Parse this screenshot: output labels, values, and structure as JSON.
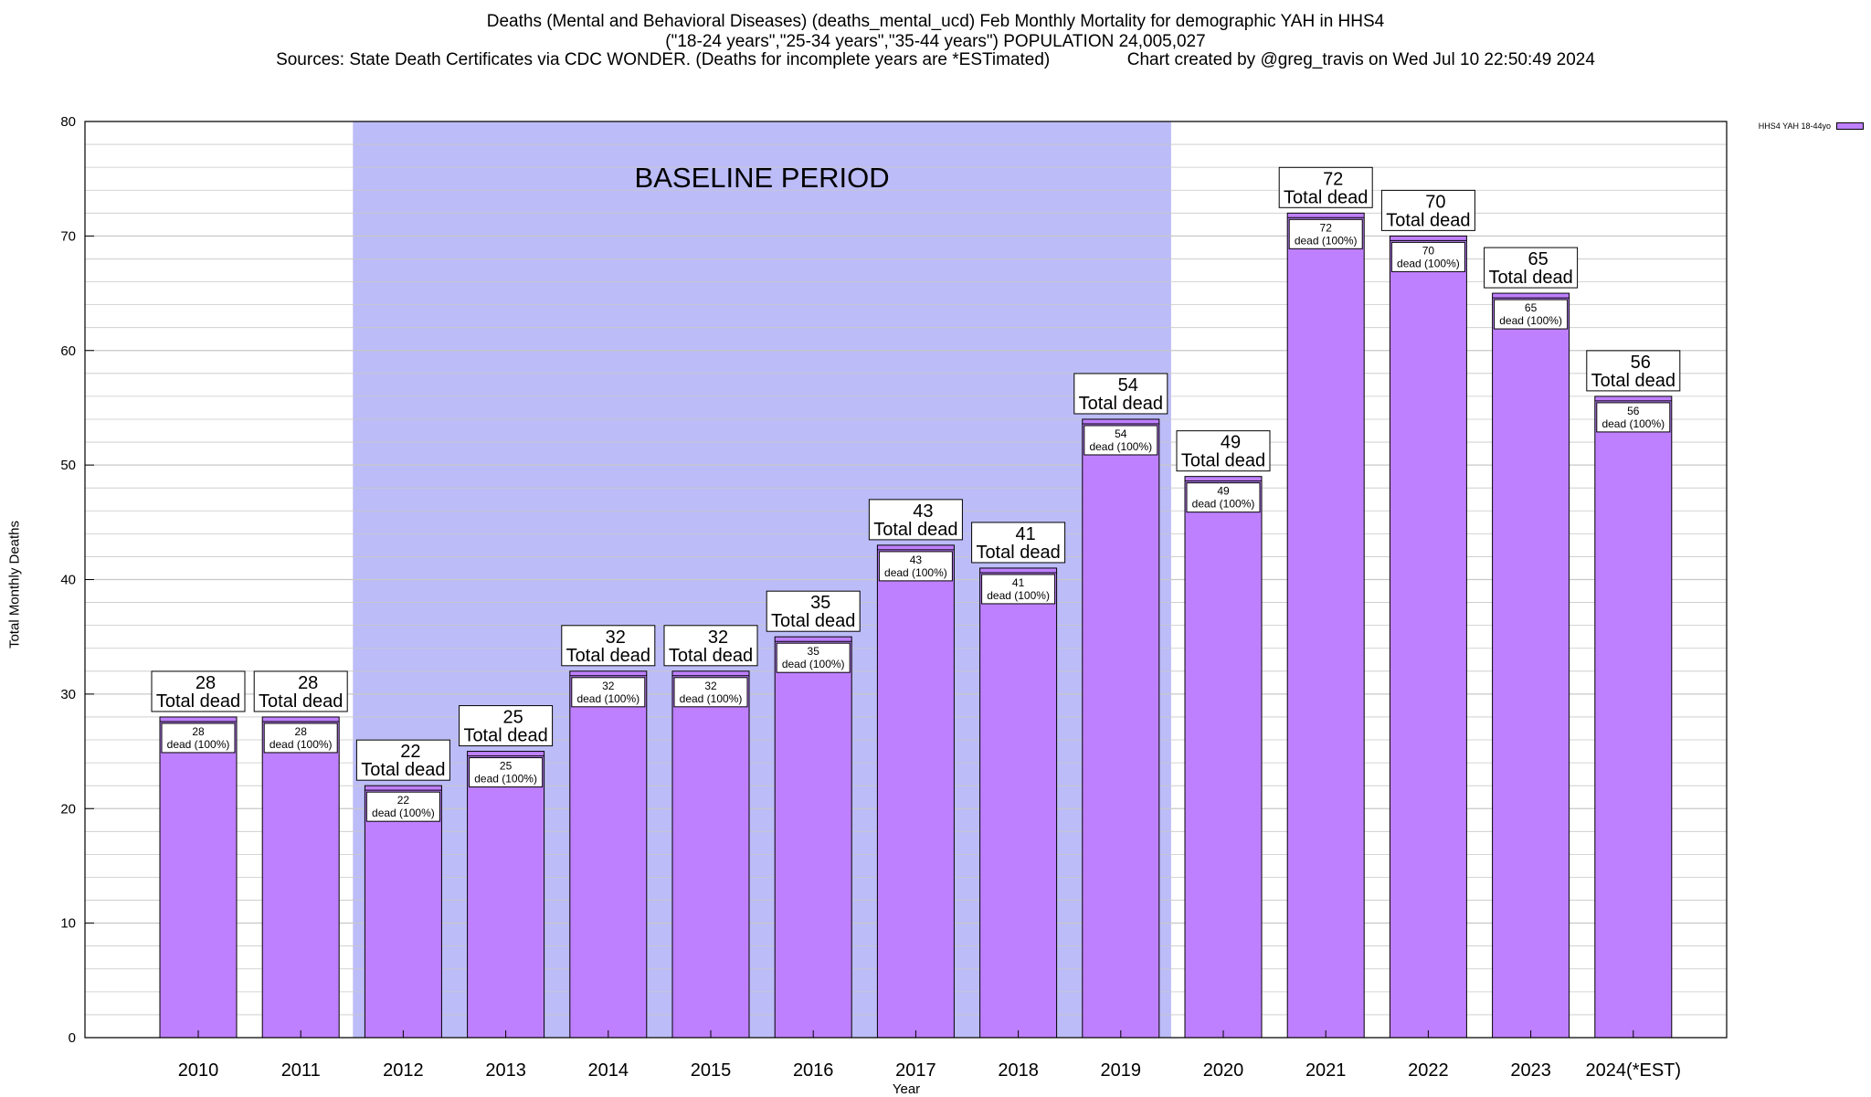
{
  "header": {
    "title_line1": "Deaths (Mental and Behavioral Diseases) (deaths_mental_ucd) Feb Monthly Mortality for demographic YAH in HHS4",
    "title_line2": "(\"18-24 years\",\"25-34 years\",\"35-44 years\") POPULATION 24,005,027",
    "title_line3": "Sources: State Death Certificates via CDC WONDER. (Deaths for incomplete years are *ESTimated)                Chart created by @greg_travis on Wed Jul 10 22:50:49 2024"
  },
  "legend": {
    "label": "HHS4 YAH 18-44yo"
  },
  "colors": {
    "bar": "#bf80ff",
    "baseline": "#bcbcf8",
    "grid": "#c8c8c8"
  },
  "chart_data": {
    "type": "bar",
    "title": "Deaths (Mental and Behavioral Diseases) (deaths_mental_ucd) Feb Monthly Mortality for demographic YAH in HHS4",
    "xlabel": "Year",
    "ylabel": "Total Monthly Deaths",
    "ylim": [
      0,
      80
    ],
    "yticks": [
      0,
      10,
      20,
      30,
      40,
      50,
      60,
      70,
      80
    ],
    "grid": true,
    "legend_position": "top-right",
    "categories": [
      "2010",
      "2011",
      "2012",
      "2013",
      "2014",
      "2015",
      "2016",
      "2017",
      "2018",
      "2019",
      "2020",
      "2021",
      "2022",
      "2023",
      "2024(*EST)"
    ],
    "series": [
      {
        "name": "HHS4 YAH 18-44yo",
        "values": [
          28,
          28,
          22,
          25,
          32,
          32,
          35,
          43,
          41,
          54,
          49,
          72,
          70,
          65,
          56
        ]
      }
    ],
    "total_label": "Total dead",
    "inner_label": "dead (100%)",
    "baseline": {
      "label": "BASELINE PERIOD",
      "from": "2012",
      "to": "2019"
    }
  }
}
